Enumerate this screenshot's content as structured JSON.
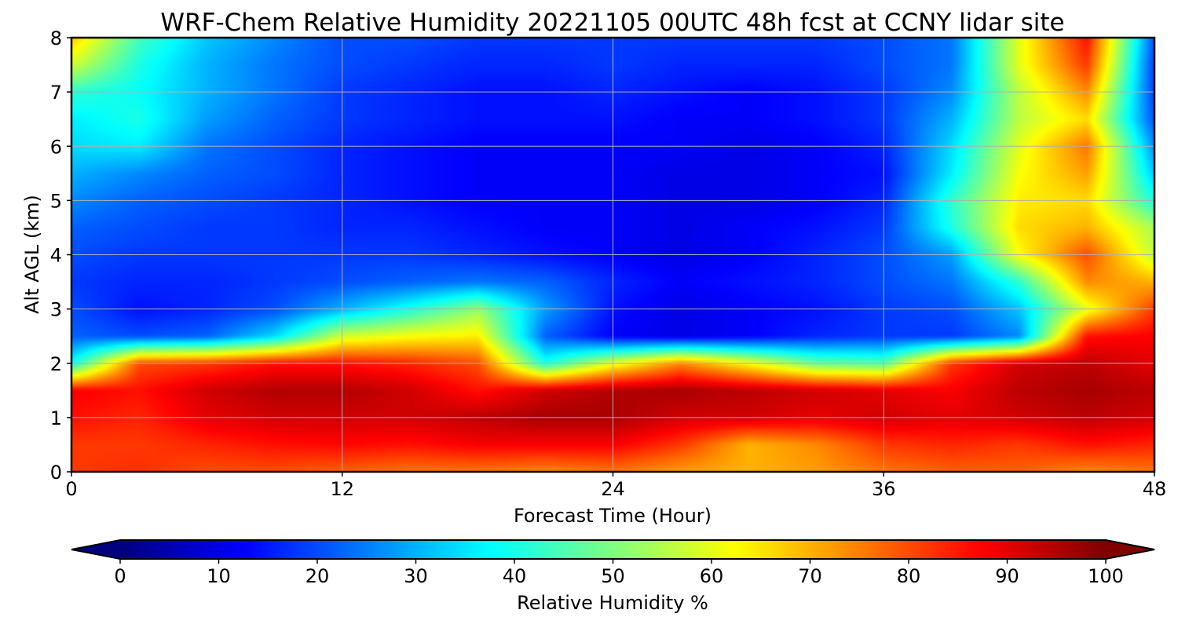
{
  "chart_data": {
    "type": "heatmap",
    "title": "WRF-Chem Relative Humidity 20221105 00UTC 48h fcst at CCNY lidar site",
    "xlabel": "Forecast Time (Hour)",
    "ylabel": "Alt AGL (km)",
    "xlim": [
      0,
      48
    ],
    "ylim": [
      0,
      8
    ],
    "x_ticks": [
      "0",
      "12",
      "24",
      "36",
      "48"
    ],
    "y_ticks": [
      "0",
      "1",
      "2",
      "3",
      "4",
      "5",
      "6",
      "7",
      "8"
    ],
    "grid": true,
    "colormap": "jet",
    "colorbar": {
      "label": "Relative Humidity %",
      "range": [
        0,
        100
      ],
      "ticks": [
        "0",
        "10",
        "20",
        "30",
        "40",
        "50",
        "60",
        "70",
        "80",
        "90",
        "100"
      ],
      "extend": "both",
      "orientation": "horizontal",
      "placement": "bottom"
    },
    "x_hours": [
      0,
      3,
      6,
      9,
      12,
      15,
      18,
      21,
      24,
      27,
      30,
      33,
      36,
      39,
      42,
      45,
      48
    ],
    "y_km": [
      0,
      0.5,
      1,
      1.5,
      2,
      2.5,
      3,
      3.5,
      4,
      4.5,
      5,
      5.5,
      6,
      6.5,
      7,
      7.5,
      8
    ],
    "rh_percent": [
      [
        82,
        83,
        80,
        80,
        78,
        76,
        76,
        74,
        76,
        72,
        70,
        72,
        76,
        78,
        78,
        74,
        76
      ],
      [
        82,
        82,
        84,
        86,
        87,
        86,
        88,
        88,
        88,
        82,
        70,
        74,
        82,
        84,
        82,
        86,
        84
      ],
      [
        86,
        84,
        90,
        92,
        92,
        92,
        94,
        96,
        96,
        92,
        92,
        90,
        92,
        90,
        92,
        94,
        92
      ],
      [
        88,
        86,
        92,
        95,
        95,
        92,
        86,
        92,
        95,
        96,
        94,
        92,
        90,
        88,
        94,
        96,
        94
      ],
      [
        38,
        80,
        82,
        86,
        86,
        84,
        80,
        40,
        60,
        74,
        62,
        48,
        46,
        82,
        92,
        94,
        90
      ],
      [
        22,
        20,
        22,
        34,
        58,
        62,
        64,
        22,
        12,
        10,
        12,
        16,
        18,
        18,
        26,
        86,
        88
      ],
      [
        20,
        14,
        16,
        20,
        30,
        40,
        52,
        28,
        14,
        10,
        12,
        14,
        18,
        20,
        32,
        60,
        82
      ],
      [
        18,
        16,
        16,
        18,
        20,
        22,
        24,
        22,
        16,
        12,
        14,
        16,
        20,
        24,
        42,
        74,
        70
      ],
      [
        20,
        18,
        18,
        18,
        18,
        18,
        16,
        14,
        12,
        10,
        12,
        16,
        20,
        28,
        62,
        80,
        56
      ],
      [
        22,
        20,
        18,
        18,
        16,
        16,
        14,
        12,
        12,
        10,
        12,
        14,
        18,
        40,
        66,
        70,
        54
      ],
      [
        26,
        22,
        20,
        18,
        16,
        14,
        12,
        12,
        12,
        10,
        10,
        12,
        16,
        42,
        64,
        66,
        40
      ],
      [
        30,
        26,
        22,
        20,
        16,
        14,
        12,
        12,
        12,
        10,
        10,
        12,
        14,
        36,
        62,
        72,
        32
      ],
      [
        34,
        36,
        24,
        20,
        16,
        14,
        12,
        12,
        12,
        12,
        10,
        12,
        16,
        34,
        60,
        76,
        26
      ],
      [
        36,
        40,
        28,
        22,
        18,
        16,
        14,
        14,
        14,
        12,
        12,
        14,
        18,
        30,
        56,
        66,
        20
      ],
      [
        42,
        38,
        30,
        24,
        18,
        16,
        14,
        14,
        16,
        14,
        12,
        14,
        18,
        26,
        56,
        74,
        18
      ],
      [
        58,
        40,
        30,
        24,
        20,
        18,
        16,
        16,
        18,
        16,
        16,
        16,
        20,
        24,
        60,
        82,
        18
      ],
      [
        68,
        44,
        32,
        26,
        20,
        20,
        18,
        18,
        18,
        18,
        18,
        18,
        20,
        24,
        60,
        86,
        20
      ]
    ]
  }
}
